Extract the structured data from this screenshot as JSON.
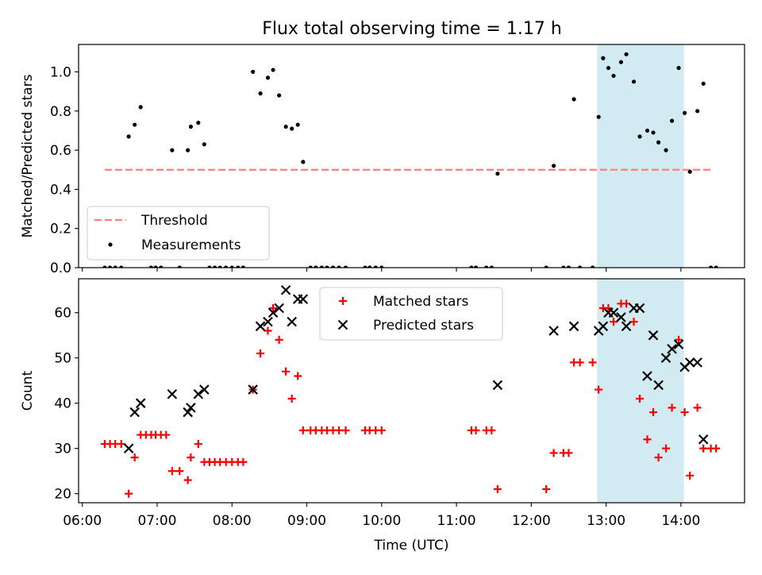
{
  "title": "Flux total observing time = 1.17 h",
  "chart_data": [
    {
      "type": "scatter",
      "ylabel": "Matched/Predicted stars",
      "xlim": [
        5.95,
        14.85
      ],
      "ylim": [
        0.0,
        1.14
      ],
      "yticks": [
        0.0,
        0.2,
        0.4,
        0.6,
        0.8,
        1.0
      ],
      "ytick_labels": [
        "0.0",
        "0.2",
        "0.4",
        "0.6",
        "0.8",
        "1.0"
      ],
      "highlight_span": [
        12.88,
        14.04
      ],
      "highlight_color": "#add8e6",
      "threshold": {
        "name": "Threshold",
        "y": 0.5,
        "x": [
          6.3,
          14.4
        ],
        "color": "#ff7f7f",
        "style": "dashed"
      },
      "legend": {
        "loc": "lower left",
        "entries": [
          "Threshold",
          "Measurements"
        ]
      },
      "series": [
        {
          "name": "Measurements",
          "marker": "dot",
          "color": "#000000",
          "points": [
            [
              6.3,
              0
            ],
            [
              6.37,
              0
            ],
            [
              6.44,
              0
            ],
            [
              6.52,
              0
            ],
            [
              6.62,
              0.67
            ],
            [
              6.7,
              0.73
            ],
            [
              6.78,
              0.82
            ],
            [
              6.92,
              0
            ],
            [
              6.98,
              0
            ],
            [
              7.05,
              0
            ],
            [
              7.2,
              0.6
            ],
            [
              7.3,
              0
            ],
            [
              7.41,
              0.6
            ],
            [
              7.45,
              0.72
            ],
            [
              7.55,
              0.74
            ],
            [
              7.63,
              0.63
            ],
            [
              7.7,
              0
            ],
            [
              7.77,
              0
            ],
            [
              7.84,
              0
            ],
            [
              7.92,
              0
            ],
            [
              8.0,
              0
            ],
            [
              8.08,
              0
            ],
            [
              8.15,
              0
            ],
            [
              8.28,
              1.0
            ],
            [
              8.38,
              0.89
            ],
            [
              8.48,
              0.97
            ],
            [
              8.55,
              1.01
            ],
            [
              8.63,
              0.88
            ],
            [
              8.72,
              0.72
            ],
            [
              8.8,
              0.71
            ],
            [
              8.88,
              0.73
            ],
            [
              8.95,
              0.54
            ],
            [
              9.05,
              0
            ],
            [
              9.12,
              0
            ],
            [
              9.2,
              0
            ],
            [
              9.27,
              0
            ],
            [
              9.35,
              0
            ],
            [
              9.43,
              0
            ],
            [
              9.52,
              0
            ],
            [
              9.78,
              0
            ],
            [
              9.84,
              0
            ],
            [
              9.92,
              0
            ],
            [
              10.0,
              0
            ],
            [
              11.2,
              0
            ],
            [
              11.26,
              0
            ],
            [
              11.4,
              0
            ],
            [
              11.47,
              0
            ],
            [
              11.55,
              0.48
            ],
            [
              12.2,
              0
            ],
            [
              12.3,
              0.52
            ],
            [
              12.43,
              0
            ],
            [
              12.5,
              0
            ],
            [
              12.57,
              0.86
            ],
            [
              12.65,
              0
            ],
            [
              12.82,
              0
            ],
            [
              12.9,
              0.77
            ],
            [
              12.96,
              1.07
            ],
            [
              13.03,
              1.02
            ],
            [
              13.1,
              0.98
            ],
            [
              13.2,
              1.05
            ],
            [
              13.27,
              1.09
            ],
            [
              13.37,
              0.95
            ],
            [
              13.45,
              0.67
            ],
            [
              13.55,
              0.7
            ],
            [
              13.63,
              0.69
            ],
            [
              13.7,
              0.64
            ],
            [
              13.8,
              0.6
            ],
            [
              13.88,
              0.75
            ],
            [
              13.97,
              1.02
            ],
            [
              14.05,
              0.79
            ],
            [
              14.12,
              0.49
            ],
            [
              14.22,
              0.8
            ],
            [
              14.3,
              0.94
            ],
            [
              14.4,
              0
            ],
            [
              14.47,
              0
            ]
          ]
        }
      ]
    },
    {
      "type": "scatter",
      "xlabel": "Time (UTC)",
      "ylabel": "Count",
      "xlim": [
        5.95,
        14.85
      ],
      "ylim": [
        18,
        67.5
      ],
      "yticks": [
        20,
        30,
        40,
        50,
        60
      ],
      "ytick_labels": [
        "20",
        "30",
        "40",
        "50",
        "60"
      ],
      "xticks": [
        6,
        7,
        8,
        9,
        10,
        11,
        12,
        13,
        14
      ],
      "xtick_labels": [
        "06:00",
        "07:00",
        "08:00",
        "09:00",
        "10:00",
        "11:00",
        "12:00",
        "13:00",
        "14:00"
      ],
      "highlight_span": [
        12.88,
        14.04
      ],
      "highlight_color": "#add8e6",
      "legend": {
        "loc": "upper center",
        "entries": [
          "Matched stars",
          "Predicted stars"
        ]
      },
      "series": [
        {
          "name": "Matched stars",
          "marker": "plus",
          "color": "#ff0000",
          "points": [
            [
              6.3,
              31
            ],
            [
              6.37,
              31
            ],
            [
              6.44,
              31
            ],
            [
              6.52,
              31
            ],
            [
              6.62,
              20
            ],
            [
              6.7,
              28
            ],
            [
              6.78,
              33
            ],
            [
              6.85,
              33
            ],
            [
              6.92,
              33
            ],
            [
              6.98,
              33
            ],
            [
              7.05,
              33
            ],
            [
              7.12,
              33
            ],
            [
              7.2,
              25
            ],
            [
              7.3,
              25
            ],
            [
              7.41,
              23
            ],
            [
              7.45,
              28
            ],
            [
              7.55,
              31
            ],
            [
              7.63,
              27
            ],
            [
              7.7,
              27
            ],
            [
              7.77,
              27
            ],
            [
              7.84,
              27
            ],
            [
              7.92,
              27
            ],
            [
              8.0,
              27
            ],
            [
              8.08,
              27
            ],
            [
              8.15,
              27
            ],
            [
              8.28,
              43
            ],
            [
              8.38,
              51
            ],
            [
              8.48,
              56
            ],
            [
              8.55,
              61
            ],
            [
              8.63,
              54
            ],
            [
              8.72,
              47
            ],
            [
              8.8,
              41
            ],
            [
              8.88,
              46
            ],
            [
              8.95,
              34
            ],
            [
              9.05,
              34
            ],
            [
              9.12,
              34
            ],
            [
              9.2,
              34
            ],
            [
              9.27,
              34
            ],
            [
              9.35,
              34
            ],
            [
              9.43,
              34
            ],
            [
              9.52,
              34
            ],
            [
              9.78,
              34
            ],
            [
              9.84,
              34
            ],
            [
              9.92,
              34
            ],
            [
              10.0,
              34
            ],
            [
              11.2,
              34
            ],
            [
              11.26,
              34
            ],
            [
              11.4,
              34
            ],
            [
              11.47,
              34
            ],
            [
              11.55,
              21
            ],
            [
              12.2,
              21
            ],
            [
              12.3,
              29
            ],
            [
              12.43,
              29
            ],
            [
              12.5,
              29
            ],
            [
              12.57,
              49
            ],
            [
              12.65,
              49
            ],
            [
              12.82,
              49
            ],
            [
              12.9,
              43
            ],
            [
              12.96,
              61
            ],
            [
              13.03,
              61
            ],
            [
              13.1,
              58
            ],
            [
              13.2,
              62
            ],
            [
              13.27,
              62
            ],
            [
              13.37,
              58
            ],
            [
              13.45,
              41
            ],
            [
              13.55,
              32
            ],
            [
              13.63,
              38
            ],
            [
              13.7,
              28
            ],
            [
              13.8,
              30
            ],
            [
              13.88,
              39
            ],
            [
              13.97,
              54
            ],
            [
              14.05,
              38
            ],
            [
              14.12,
              24
            ],
            [
              14.22,
              39
            ],
            [
              14.3,
              30
            ],
            [
              14.4,
              30
            ],
            [
              14.47,
              30
            ]
          ]
        },
        {
          "name": "Predicted stars",
          "marker": "x",
          "color": "#000000",
          "points": [
            [
              6.62,
              30
            ],
            [
              6.7,
              38
            ],
            [
              6.78,
              40
            ],
            [
              7.2,
              42
            ],
            [
              7.41,
              38
            ],
            [
              7.45,
              39
            ],
            [
              7.55,
              42
            ],
            [
              7.63,
              43
            ],
            [
              8.28,
              43
            ],
            [
              8.38,
              57
            ],
            [
              8.48,
              58
            ],
            [
              8.55,
              60
            ],
            [
              8.63,
              61
            ],
            [
              8.72,
              65
            ],
            [
              8.8,
              58
            ],
            [
              8.88,
              63
            ],
            [
              8.95,
              63
            ],
            [
              11.55,
              44
            ],
            [
              12.3,
              56
            ],
            [
              12.57,
              57
            ],
            [
              12.9,
              56
            ],
            [
              12.96,
              57
            ],
            [
              13.03,
              60
            ],
            [
              13.1,
              60
            ],
            [
              13.2,
              59
            ],
            [
              13.27,
              57
            ],
            [
              13.37,
              61
            ],
            [
              13.45,
              61
            ],
            [
              13.55,
              46
            ],
            [
              13.63,
              55
            ],
            [
              13.7,
              44
            ],
            [
              13.8,
              50
            ],
            [
              13.88,
              52
            ],
            [
              13.97,
              53
            ],
            [
              14.05,
              48
            ],
            [
              14.12,
              49
            ],
            [
              14.22,
              49
            ],
            [
              14.3,
              32
            ]
          ]
        }
      ]
    }
  ]
}
